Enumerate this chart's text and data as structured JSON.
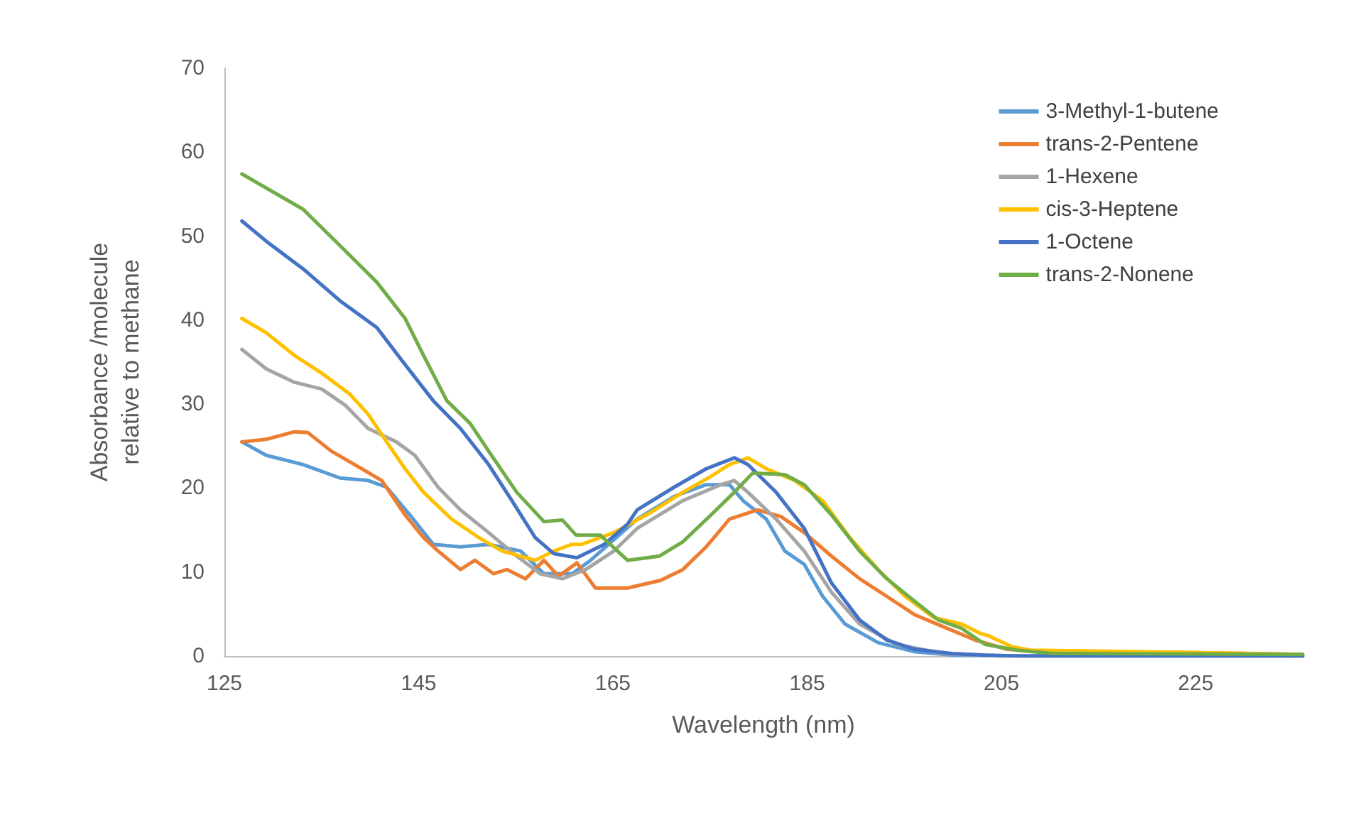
{
  "chart_data": {
    "type": "line",
    "xlabel": "Wavelength (nm)",
    "ylabel": "Absorbance /molecule\nrelative to methane",
    "xlim": [
      125,
      236
    ],
    "xticks": [
      125,
      145,
      165,
      185,
      205,
      225
    ],
    "ylim": [
      0,
      70
    ],
    "yticks": [
      0,
      10,
      20,
      30,
      40,
      50,
      60,
      70
    ],
    "grid": false,
    "legend": "top right",
    "line_style": "solid",
    "marker": "none",
    "series": [
      {
        "name": "3-Methyl-1-butene",
        "color": "#5b9bd5",
        "x": [
          126.8,
          129.3,
          133.1,
          136.9,
          139.8,
          141.7,
          144.1,
          146.5,
          149.3,
          152.2,
          155.5,
          157.9,
          160.8,
          162.7,
          167.5,
          171.3,
          174.6,
          177,
          178.4,
          180.8,
          182.7,
          184.7,
          186.6,
          188.9,
          192.3,
          196.1,
          200,
          210,
          236
        ],
        "values": [
          25.5,
          23.9,
          22.8,
          21.2,
          20.9,
          20.1,
          16.8,
          13.3,
          13,
          13.3,
          12.5,
          9.8,
          9.8,
          11.4,
          16.3,
          19,
          20.4,
          20.4,
          18.5,
          16.3,
          12.5,
          10.9,
          7.1,
          3.8,
          1.6,
          0.5,
          0.1,
          0,
          0
        ]
      },
      {
        "name": "trans-2-Pentene",
        "color": "#ed7d31",
        "x": [
          126.8,
          129.3,
          132.2,
          133.6,
          136,
          138.4,
          141.2,
          143.6,
          145.5,
          147,
          149.3,
          150.8,
          152.7,
          154.1,
          156,
          157.9,
          159.4,
          161.3,
          163.2,
          166.5,
          169.9,
          172.2,
          174.6,
          177,
          179.9,
          182.3,
          184.7,
          187.5,
          190.4,
          193.2,
          196.1,
          199,
          202.3,
          205.6,
          210,
          225,
          236
        ],
        "values": [
          25.5,
          25.8,
          26.7,
          26.6,
          24.4,
          22.8,
          20.9,
          16.8,
          14.1,
          12.5,
          10.3,
          11.4,
          9.8,
          10.3,
          9.2,
          11.4,
          9.5,
          11.1,
          8.1,
          8.1,
          9,
          10.3,
          13,
          16.3,
          17.4,
          16.6,
          14.7,
          11.9,
          9.2,
          7.1,
          4.9,
          3.5,
          1.9,
          0.8,
          0.5,
          0.4,
          0.2
        ]
      },
      {
        "name": "1-Hexene",
        "color": "#a5a5a5",
        "x": [
          126.8,
          129.3,
          132.2,
          135,
          137.4,
          139.8,
          142.7,
          144.6,
          147,
          149.3,
          152.2,
          155.1,
          157.5,
          159.8,
          162.2,
          165.1,
          167.5,
          172.2,
          176.1,
          177.5,
          178.9,
          181.8,
          184.7,
          187.5,
          190.4,
          194.2,
          199,
          205,
          236
        ],
        "values": [
          36.5,
          34.2,
          32.6,
          31.8,
          29.9,
          27.1,
          25.5,
          23.9,
          20.1,
          17.4,
          14.7,
          11.9,
          9.8,
          9.2,
          10.3,
          12.5,
          15.2,
          18.5,
          20.4,
          20.9,
          19.5,
          16.3,
          12.5,
          7.6,
          3.8,
          1.4,
          0.3,
          0,
          0
        ]
      },
      {
        "name": "cis-3-Heptene",
        "color": "#ffc000",
        "x": [
          126.8,
          129.3,
          132.2,
          135,
          137.9,
          139.8,
          141.7,
          143.6,
          145.5,
          148.4,
          151.2,
          153.6,
          157,
          158.9,
          160.8,
          161.8,
          165.1,
          168.9,
          172.2,
          175.1,
          177,
          178.9,
          180.8,
          183.7,
          186.6,
          189.4,
          192.3,
          195.1,
          198,
          200.9,
          202.8,
          203.7,
          206.1,
          208,
          220,
          236
        ],
        "values": [
          40.2,
          38.5,
          35.8,
          33.7,
          31.2,
          28.8,
          25.5,
          22.3,
          19.5,
          16.3,
          14.1,
          12.5,
          11.4,
          12.5,
          13.3,
          13.3,
          14.7,
          17.1,
          19.5,
          21.4,
          22.8,
          23.6,
          22.3,
          20.9,
          18.5,
          14.1,
          10.3,
          7.1,
          4.6,
          3.8,
          2.7,
          2.4,
          1.1,
          0.7,
          0.5,
          0.2
        ]
      },
      {
        "name": "1-Octene",
        "color": "#4472c4",
        "x": [
          126.8,
          129.3,
          133.1,
          136.9,
          140.7,
          143.6,
          146.5,
          149.3,
          152.2,
          154.6,
          157,
          158.9,
          161.3,
          164.1,
          166.5,
          167.5,
          171.3,
          174.6,
          177.5,
          178.9,
          181.8,
          184.7,
          187.5,
          190.4,
          193.2,
          196.1,
          199.9,
          203.3,
          206.6,
          236
        ],
        "values": [
          51.8,
          49.4,
          46.1,
          42.3,
          39.1,
          34.7,
          30.4,
          27.1,
          22.8,
          18.5,
          14.1,
          12.2,
          11.7,
          13.3,
          15.7,
          17.4,
          20.1,
          22.3,
          23.6,
          22.8,
          19.5,
          15.2,
          8.7,
          4.3,
          1.9,
          0.8,
          0.3,
          0.1,
          0,
          0
        ]
      },
      {
        "name": "trans-2-Nonene",
        "color": "#70ad47",
        "x": [
          126.8,
          133.1,
          137.4,
          140.7,
          143.6,
          145.5,
          147.9,
          150.3,
          152.2,
          155.1,
          157.9,
          159.8,
          161.2,
          163.7,
          166.5,
          169.8,
          172.2,
          175.1,
          177.5,
          179.4,
          182.7,
          184.7,
          187.5,
          190.4,
          193.2,
          196.1,
          198.5,
          200.9,
          203.3,
          206.6,
          210.4,
          236
        ],
        "values": [
          57.4,
          53.2,
          48.3,
          44.5,
          40.2,
          35.8,
          30.4,
          27.7,
          24.4,
          19.5,
          16,
          16.2,
          14.4,
          14.4,
          11.4,
          11.9,
          13.6,
          16.8,
          19.5,
          21.8,
          21.6,
          20.4,
          16.8,
          12.5,
          9.2,
          6.5,
          4.3,
          3.3,
          1.4,
          0.7,
          0.3,
          0.2
        ]
      }
    ]
  }
}
